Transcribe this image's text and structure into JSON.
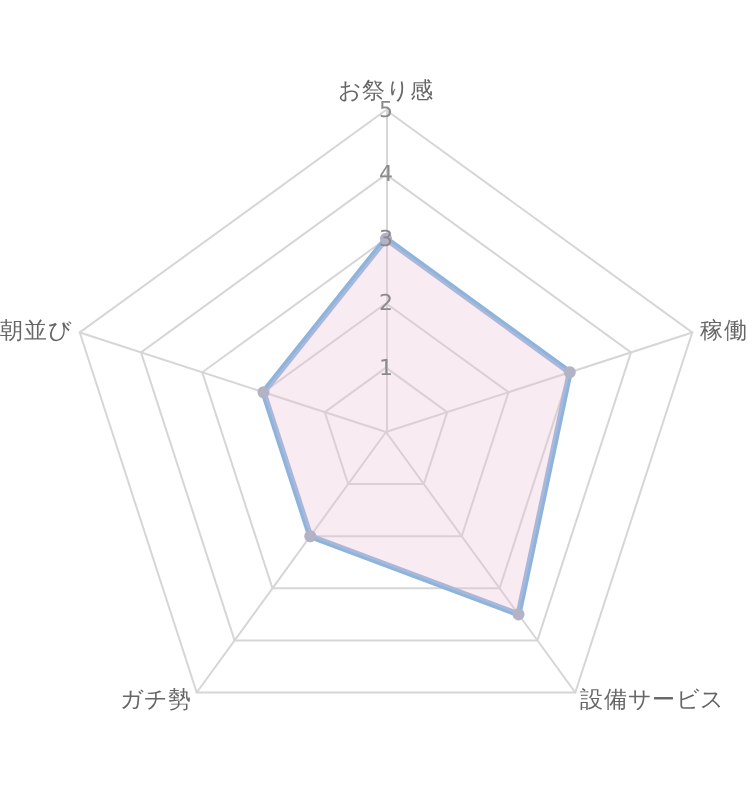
{
  "chart_data": {
    "type": "radar",
    "categories": [
      "お祭り感",
      "稼働",
      "設備サービス",
      "ガチ勢",
      "朝並び"
    ],
    "series": [
      {
        "color": "#8db4dc",
        "values": [
          3,
          3,
          3.5,
          2,
          2
        ]
      }
    ],
    "ylim": [
      0,
      5
    ],
    "yticks": [
      1,
      2,
      3,
      4,
      5
    ],
    "marker": "circle"
  }
}
